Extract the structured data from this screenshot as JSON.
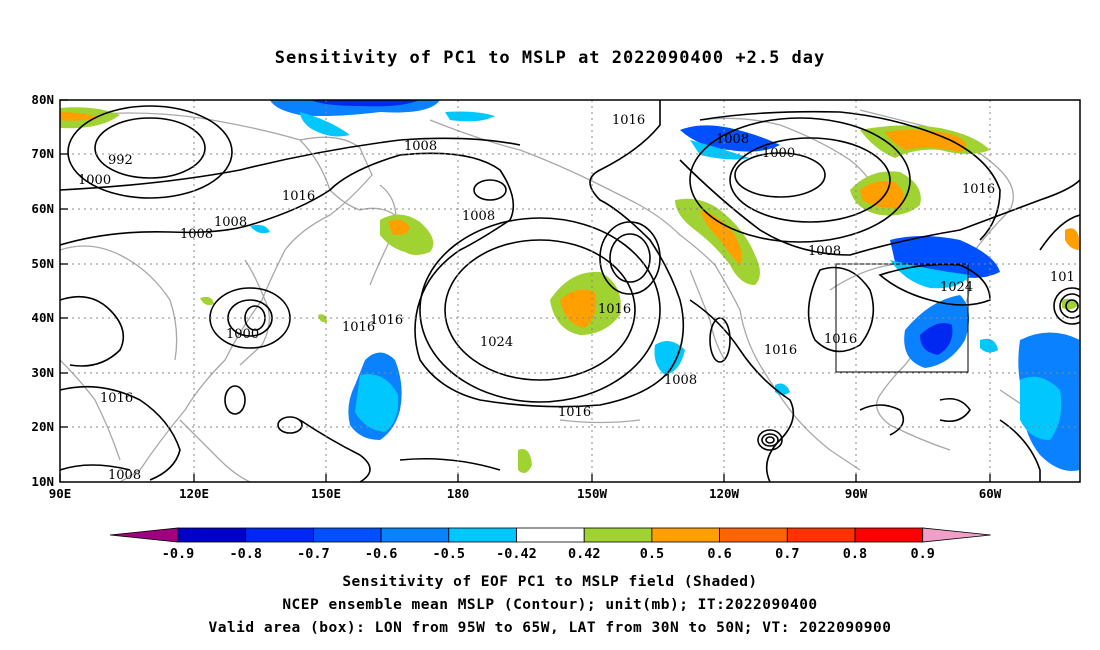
{
  "title": "Sensitivity of PC1 to MSLP at 2022090400 +2.5 day",
  "map": {
    "lon_labels": [
      "90E",
      "120E",
      "150E",
      "180",
      "150W",
      "120W",
      "90W",
      "60W"
    ],
    "lat_labels": [
      "80N",
      "70N",
      "60N",
      "50N",
      "40N",
      "30N",
      "20N",
      "10N"
    ],
    "contour_labels": [
      {
        "text": "992"
      },
      {
        "text": "1000"
      },
      {
        "text": "1008"
      },
      {
        "text": "1008"
      },
      {
        "text": "1008"
      },
      {
        "text": "1016"
      },
      {
        "text": "1008"
      },
      {
        "text": "1016"
      },
      {
        "text": "1000"
      },
      {
        "text": "1016"
      },
      {
        "text": "1016"
      },
      {
        "text": "1016"
      },
      {
        "text": "1024"
      },
      {
        "text": "1016"
      },
      {
        "text": "1016"
      },
      {
        "text": "1008"
      },
      {
        "text": "1000"
      },
      {
        "text": "1016"
      },
      {
        "text": "1008"
      },
      {
        "text": "1016"
      },
      {
        "text": "1008"
      },
      {
        "text": "1016"
      },
      {
        "text": "1024"
      },
      {
        "text": "1016"
      },
      {
        "text": "101"
      },
      {
        "text": "1008"
      }
    ],
    "valid_box": {
      "lon_min": -95,
      "lon_max": -65,
      "lat_min": 30,
      "lat_max": 50
    }
  },
  "colorbar": {
    "labels": [
      "-0.9",
      "-0.8",
      "-0.7",
      "-0.6",
      "-0.5",
      "-0.42",
      "0.42",
      "0.5",
      "0.6",
      "0.7",
      "0.8",
      "0.9"
    ],
    "colors": [
      "#a0007f",
      "#0000c8",
      "#0028f0",
      "#0050ff",
      "#0a82ff",
      "#00c8ff",
      "#ffffff",
      "#a0d232",
      "#ffa000",
      "#ff6400",
      "#ff3200",
      "#ff0000",
      "#f0a0c8"
    ]
  },
  "captions": {
    "line1": "Sensitivity of EOF PC1 to MSLP field (Shaded)",
    "line2": "NCEP ensemble mean MSLP (Contour); unit(mb); IT:2022090400",
    "line3": "Valid area (box): LON from 95W to 65W, LAT from 30N to 50N; VT: 2022090900"
  }
}
